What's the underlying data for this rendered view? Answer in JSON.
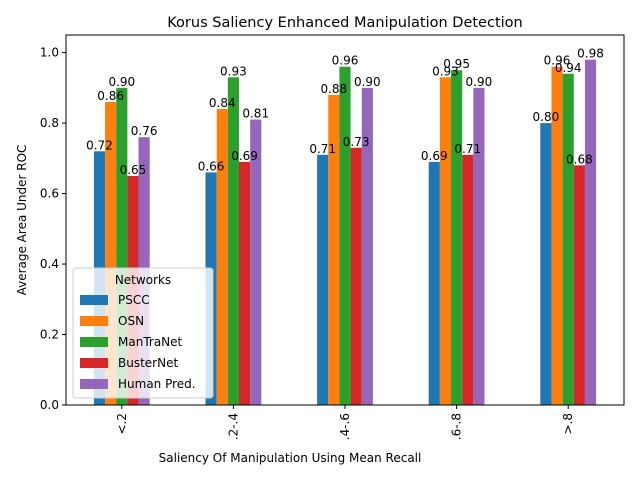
{
  "chart_data": {
    "type": "bar",
    "title": "Korus Saliency Enhanced Manipulation Detection",
    "xlabel": "Saliency Of Manipulation Using Mean Recall",
    "ylabel": "Average Area Under ROC",
    "categories": [
      "<.2",
      ".2-.4",
      ".4-.6",
      ".6-.8",
      ">.8"
    ],
    "ylim": [
      0,
      1.05
    ],
    "yticks": [
      "0.0",
      "0.2",
      "0.4",
      "0.6",
      "0.8",
      "1.0"
    ],
    "grid": false,
    "legend": {
      "title": "Networks",
      "placement": "lower-left"
    },
    "series": [
      {
        "name": "PSCC",
        "color": "#1f77b4",
        "values": [
          0.72,
          0.66,
          0.71,
          0.69,
          0.8
        ],
        "labels": [
          "0.72",
          "0.66",
          "0.71",
          "0.69",
          "0.80"
        ]
      },
      {
        "name": "OSN",
        "color": "#ff7f0e",
        "values": [
          0.86,
          0.84,
          0.88,
          0.93,
          0.96
        ],
        "labels": [
          "0.86",
          "0.84",
          "0.88",
          "0.93",
          "0.96"
        ]
      },
      {
        "name": "ManTraNet",
        "color": "#2ca02c",
        "values": [
          0.9,
          0.93,
          0.96,
          0.95,
          0.94
        ],
        "labels": [
          "0.90",
          "0.93",
          "0.96",
          "0.95",
          "0.94"
        ]
      },
      {
        "name": "BusterNet",
        "color": "#d62728",
        "values": [
          0.65,
          0.69,
          0.73,
          0.71,
          0.68
        ],
        "labels": [
          "0.65",
          "0.69",
          "0.73",
          "0.71",
          "0.68"
        ]
      },
      {
        "name": "Human Pred.",
        "color": "#9467bd",
        "values": [
          0.76,
          0.81,
          0.9,
          0.9,
          0.98
        ],
        "labels": [
          "0.76",
          "0.81",
          "0.90",
          "0.90",
          "0.98"
        ]
      }
    ]
  }
}
